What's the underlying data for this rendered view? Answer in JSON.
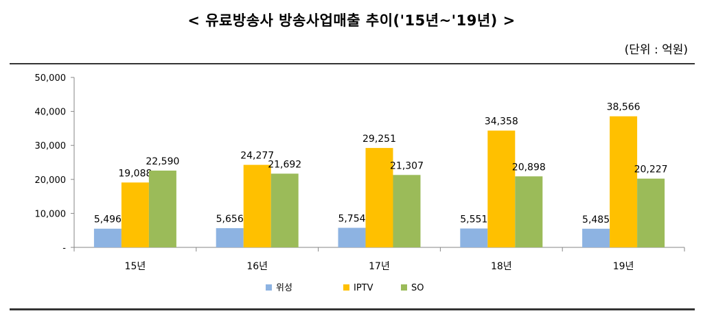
{
  "title": "< 유료방송사  방송사업매출  추이('15년~'19년)  >",
  "unit": "(단위 : 억원)",
  "colors": {
    "위성": "#8db3e2",
    "IPTV": "#ffc000",
    "SO": "#9bbb59"
  },
  "chart_data": {
    "type": "bar",
    "categories": [
      "15년",
      "16년",
      "17년",
      "18년",
      "19년"
    ],
    "series": [
      {
        "name": "위성",
        "values": [
          5496,
          5656,
          5754,
          5551,
          5485
        ]
      },
      {
        "name": "IPTV",
        "values": [
          19088,
          24277,
          29251,
          34358,
          38566
        ]
      },
      {
        "name": "SO",
        "values": [
          22590,
          21692,
          21307,
          20898,
          20227
        ]
      }
    ],
    "data_labels": [
      [
        "5,496",
        "5,656",
        "5,754",
        "5,551",
        "5,485"
      ],
      [
        "19,088",
        "24,277",
        "29,251",
        "34,358",
        "38,566"
      ],
      [
        "22,590",
        "21,692",
        "21,307",
        "20,898",
        "20,227"
      ]
    ],
    "yticks": [
      0,
      10000,
      20000,
      30000,
      40000,
      50000
    ],
    "ytick_labels": [
      "-",
      "10,000",
      "20,000",
      "30,000",
      "40,000",
      "50,000"
    ],
    "ylim": [
      0,
      50000
    ],
    "legend": "bottom",
    "grid": false
  }
}
